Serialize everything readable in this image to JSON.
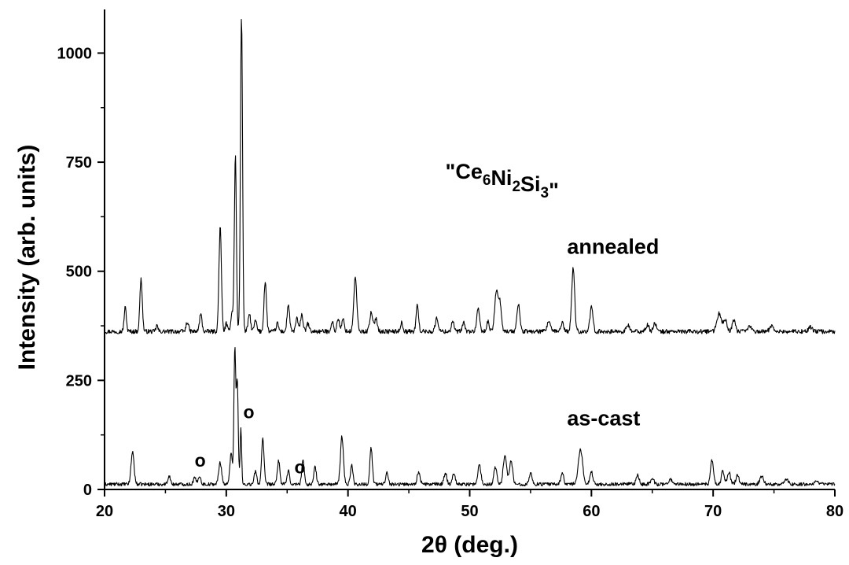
{
  "chart_data": {
    "type": "line",
    "title": "",
    "xlabel": "2θ (deg.)",
    "ylabel": "Intensity (arb. units)",
    "xlim": [
      20,
      80
    ],
    "ylim": [
      0,
      1100
    ],
    "xticks": [
      20,
      30,
      40,
      50,
      60,
      70,
      80
    ],
    "yticks": [
      0,
      250,
      500,
      750,
      1000
    ],
    "x_minor_step": 5,
    "y_minor_step": 125,
    "grid": false,
    "legend": "none",
    "line_color": "#000000",
    "compound_label": {
      "text": "\"Ce6Ni2Si3\"",
      "parts": [
        {
          "t": "\"Ce",
          "sub": false
        },
        {
          "t": "6",
          "sub": true
        },
        {
          "t": "Ni",
          "sub": false
        },
        {
          "t": "2",
          "sub": true
        },
        {
          "t": "Si",
          "sub": false
        },
        {
          "t": "3",
          "sub": true
        },
        {
          "t": "\"",
          "sub": false
        }
      ]
    },
    "series": [
      {
        "name": "annealed",
        "baseline": 362,
        "noise": 5,
        "peaks": [
          [
            21.7,
            55,
            0.09
          ],
          [
            23.0,
            120,
            0.1
          ],
          [
            24.3,
            14,
            0.08
          ],
          [
            26.8,
            22,
            0.1
          ],
          [
            27.9,
            40,
            0.1
          ],
          [
            29.5,
            240,
            0.1
          ],
          [
            30.0,
            18,
            0.08
          ],
          [
            30.5,
            45,
            0.12
          ],
          [
            30.75,
            405,
            0.08
          ],
          [
            31.25,
            725,
            0.085
          ],
          [
            31.9,
            40,
            0.1
          ],
          [
            32.4,
            25,
            0.1
          ],
          [
            33.2,
            115,
            0.1
          ],
          [
            34.2,
            18,
            0.1
          ],
          [
            35.1,
            62,
            0.1
          ],
          [
            35.8,
            30,
            0.1
          ],
          [
            36.2,
            40,
            0.1
          ],
          [
            36.7,
            18,
            0.1
          ],
          [
            38.7,
            22,
            0.1
          ],
          [
            39.2,
            30,
            0.1
          ],
          [
            39.6,
            28,
            0.1
          ],
          [
            40.6,
            125,
            0.12
          ],
          [
            41.9,
            42,
            0.12
          ],
          [
            42.3,
            30,
            0.12
          ],
          [
            44.4,
            20,
            0.1
          ],
          [
            45.7,
            60,
            0.1
          ],
          [
            47.3,
            30,
            0.12
          ],
          [
            48.6,
            25,
            0.1
          ],
          [
            49.5,
            20,
            0.1
          ],
          [
            50.7,
            50,
            0.12
          ],
          [
            51.5,
            22,
            0.1
          ],
          [
            52.2,
            95,
            0.14
          ],
          [
            52.5,
            60,
            0.12
          ],
          [
            54.0,
            62,
            0.12
          ],
          [
            56.5,
            25,
            0.12
          ],
          [
            57.6,
            20,
            0.12
          ],
          [
            58.5,
            147,
            0.12
          ],
          [
            60.0,
            55,
            0.12
          ],
          [
            63.0,
            15,
            0.12
          ],
          [
            64.6,
            15,
            0.12
          ],
          [
            65.2,
            20,
            0.12
          ],
          [
            70.5,
            42,
            0.18
          ],
          [
            71.0,
            25,
            0.15
          ],
          [
            71.7,
            26,
            0.12
          ],
          [
            73.0,
            12,
            0.15
          ],
          [
            74.8,
            14,
            0.15
          ],
          [
            78.0,
            10,
            0.15
          ]
        ]
      },
      {
        "name": "as-cast",
        "baseline": 12,
        "noise": 4,
        "peaks": [
          [
            22.3,
            75,
            0.12
          ],
          [
            25.3,
            20,
            0.1
          ],
          [
            27.4,
            15,
            0.1
          ],
          [
            27.8,
            20,
            0.1
          ],
          [
            29.5,
            50,
            0.12
          ],
          [
            30.4,
            75,
            0.1
          ],
          [
            30.7,
            310,
            0.07
          ],
          [
            30.9,
            240,
            0.08
          ],
          [
            31.2,
            130,
            0.06
          ],
          [
            32.4,
            30,
            0.1
          ],
          [
            33.0,
            105,
            0.1
          ],
          [
            34.3,
            55,
            0.1
          ],
          [
            35.1,
            30,
            0.1
          ],
          [
            36.3,
            55,
            0.1
          ],
          [
            37.3,
            40,
            0.1
          ],
          [
            39.5,
            110,
            0.12
          ],
          [
            40.3,
            45,
            0.1
          ],
          [
            41.9,
            85,
            0.1
          ],
          [
            43.2,
            30,
            0.1
          ],
          [
            45.8,
            28,
            0.12
          ],
          [
            48.0,
            25,
            0.12
          ],
          [
            48.7,
            25,
            0.12
          ],
          [
            50.8,
            45,
            0.12
          ],
          [
            52.1,
            40,
            0.12
          ],
          [
            52.9,
            68,
            0.14
          ],
          [
            53.4,
            55,
            0.12
          ],
          [
            55.0,
            25,
            0.12
          ],
          [
            57.6,
            25,
            0.12
          ],
          [
            59.1,
            78,
            0.18
          ],
          [
            60.0,
            28,
            0.12
          ],
          [
            63.8,
            20,
            0.12
          ],
          [
            65.0,
            15,
            0.12
          ],
          [
            66.5,
            12,
            0.12
          ],
          [
            69.9,
            55,
            0.12
          ],
          [
            70.8,
            30,
            0.12
          ],
          [
            71.3,
            28,
            0.12
          ],
          [
            72.0,
            22,
            0.12
          ],
          [
            74.0,
            18,
            0.15
          ],
          [
            76.0,
            12,
            0.15
          ],
          [
            78.5,
            10,
            0.15
          ]
        ]
      }
    ],
    "annotations": [
      {
        "text": "annealed",
        "x": 58.0,
        "y": 540,
        "cls": "annot"
      },
      {
        "text": "as-cast",
        "x": 58.0,
        "y": 147,
        "cls": "annot"
      },
      {
        "text": "o",
        "x": 27.4,
        "y": 52,
        "cls": "marker"
      },
      {
        "text": "o",
        "x": 31.4,
        "y": 163,
        "cls": "marker"
      },
      {
        "text": "o",
        "x": 35.6,
        "y": 37,
        "cls": "marker"
      }
    ],
    "compound_position": {
      "x": 48.0,
      "y": 712
    }
  }
}
